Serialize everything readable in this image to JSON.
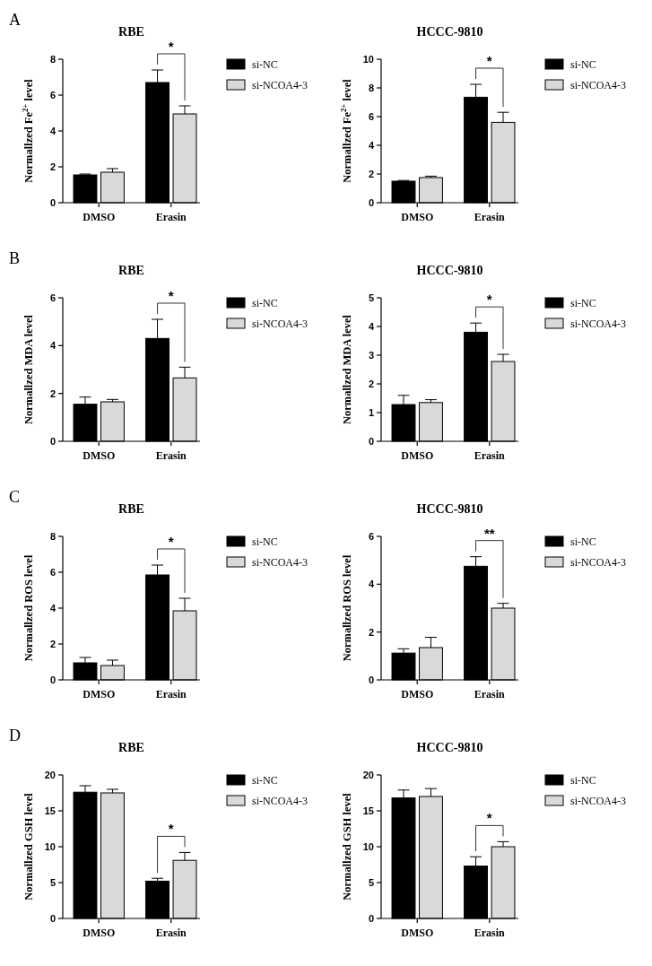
{
  "chart_data": [
    {
      "type": "bar",
      "title": "RBE",
      "ylabel": "Normallzed Fe$^{2+}$ level",
      "categories": [
        "DMSO",
        "Erasin"
      ],
      "ylim": [
        0,
        8
      ],
      "yticks": [
        0,
        2,
        4,
        6,
        8
      ],
      "legend": "right",
      "series": [
        {
          "name": "si-NC",
          "color": "#000000",
          "values": [
            1.55,
            6.7
          ],
          "errors": [
            [
              1.55,
              1.6
            ],
            [
              6.7,
              7.4
            ]
          ]
        },
        {
          "name": "si-NCOA4-3",
          "color": "#d9d9d9",
          "values": [
            1.7,
            4.95
          ],
          "errors": [
            [
              1.7,
              1.9
            ],
            [
              4.95,
              5.4
            ]
          ]
        }
      ],
      "annotations": [
        "A",
        "*"
      ]
    },
    {
      "type": "bar",
      "title": "HCCC-9810",
      "ylabel": "Normallzed Fe$^{2+}$ level",
      "categories": [
        "DMSO",
        "Erasin"
      ],
      "ylim": [
        0,
        10
      ],
      "yticks": [
        0,
        2,
        4,
        6,
        8,
        10
      ],
      "legend": "right",
      "series": [
        {
          "name": "si-NC",
          "color": "#000000",
          "values": [
            1.5,
            7.35
          ],
          "errors": [
            [
              1.5,
              1.55
            ],
            [
              7.35,
              8.25
            ]
          ]
        },
        {
          "name": "si-NCOA4-3",
          "color": "#d9d9d9",
          "values": [
            1.75,
            5.6
          ],
          "errors": [
            [
              1.75,
              1.85
            ],
            [
              5.6,
              6.3
            ]
          ]
        }
      ],
      "annotations": [
        "*"
      ]
    },
    {
      "type": "bar",
      "title": "RBE",
      "ylabel": "Normallzed MDA  level",
      "categories": [
        "DMSO",
        "Erasin"
      ],
      "ylim": [
        0,
        6
      ],
      "yticks": [
        0,
        2,
        4,
        6
      ],
      "legend": "right",
      "series": [
        {
          "name": "si-NC",
          "color": "#000000",
          "values": [
            1.55,
            4.3
          ],
          "errors": [
            [
              1.55,
              1.85
            ],
            [
              4.3,
              5.1
            ]
          ]
        },
        {
          "name": "si-NCOA4-3",
          "color": "#d9d9d9",
          "values": [
            1.65,
            2.65
          ],
          "errors": [
            [
              1.65,
              1.75
            ],
            [
              2.65,
              3.1
            ]
          ]
        }
      ],
      "annotations": [
        "B",
        "*"
      ]
    },
    {
      "type": "bar",
      "title": "HCCC-9810",
      "ylabel": "Normallzed MDA  level",
      "categories": [
        "DMSO",
        "Erasin"
      ],
      "ylim": [
        0,
        5
      ],
      "yticks": [
        0,
        1,
        2,
        3,
        4,
        5
      ],
      "legend": "right",
      "series": [
        {
          "name": "si-NC",
          "color": "#000000",
          "values": [
            1.28,
            3.8
          ],
          "errors": [
            [
              1.28,
              1.6
            ],
            [
              3.8,
              4.12
            ]
          ]
        },
        {
          "name": "si-NCOA4-3",
          "color": "#d9d9d9",
          "values": [
            1.35,
            2.78
          ],
          "errors": [
            [
              1.35,
              1.45
            ],
            [
              2.78,
              3.03
            ]
          ]
        }
      ],
      "annotations": [
        "*"
      ]
    },
    {
      "type": "bar",
      "title": "RBE",
      "ylabel": "Normallzed ROS  level",
      "categories": [
        "DMSO",
        "Erasin"
      ],
      "ylim": [
        0,
        8
      ],
      "yticks": [
        0,
        2,
        4,
        6,
        8
      ],
      "legend": "right",
      "series": [
        {
          "name": "si-NC",
          "color": "#000000",
          "values": [
            0.95,
            5.85
          ],
          "errors": [
            [
              0.95,
              1.25
            ],
            [
              5.85,
              6.4
            ]
          ]
        },
        {
          "name": "si-NCOA4-3",
          "color": "#d9d9d9",
          "values": [
            0.8,
            3.85
          ],
          "errors": [
            [
              0.8,
              1.1
            ],
            [
              3.85,
              4.55
            ]
          ]
        }
      ],
      "annotations": [
        "C",
        "*"
      ]
    },
    {
      "type": "bar",
      "title": "HCCC-9810",
      "ylabel": "Normallzed ROS  level",
      "categories": [
        "DMSO",
        "Erasin"
      ],
      "ylim": [
        0,
        6
      ],
      "yticks": [
        0,
        2,
        4,
        6
      ],
      "legend": "right",
      "series": [
        {
          "name": "si-NC",
          "color": "#000000",
          "values": [
            1.12,
            4.75
          ],
          "errors": [
            [
              1.12,
              1.3
            ],
            [
              4.75,
              5.15
            ]
          ]
        },
        {
          "name": "si-NCOA4-3",
          "color": "#d9d9d9",
          "values": [
            1.35,
            3.0
          ],
          "errors": [
            [
              1.35,
              1.78
            ],
            [
              3.0,
              3.2
            ]
          ]
        }
      ],
      "annotations": [
        "**"
      ]
    },
    {
      "type": "bar",
      "title": "RBE",
      "ylabel": "Normallzed GSH  level",
      "categories": [
        "DMSO",
        "Erasin"
      ],
      "ylim": [
        0,
        20
      ],
      "yticks": [
        0,
        5,
        10,
        15,
        20
      ],
      "legend": "right",
      "series": [
        {
          "name": "si-NC",
          "color": "#000000",
          "values": [
            17.6,
            5.2
          ],
          "errors": [
            [
              17.6,
              18.5
            ],
            [
              5.2,
              5.6
            ]
          ]
        },
        {
          "name": "si-NCOA4-3",
          "color": "#d9d9d9",
          "values": [
            17.5,
            8.1
          ],
          "errors": [
            [
              17.5,
              18.0
            ],
            [
              8.1,
              9.2
            ]
          ]
        }
      ],
      "annotations": [
        "D",
        "*"
      ]
    },
    {
      "type": "bar",
      "title": "HCCC-9810",
      "ylabel": "Normallzed GSH  level",
      "categories": [
        "DMSO",
        "Erasin"
      ],
      "ylim": [
        0,
        20
      ],
      "yticks": [
        0,
        5,
        10,
        15,
        20
      ],
      "legend": "right",
      "series": [
        {
          "name": "si-NC",
          "color": "#000000",
          "values": [
            16.8,
            7.3
          ],
          "errors": [
            [
              16.8,
              17.9
            ],
            [
              7.3,
              8.6
            ]
          ]
        },
        {
          "name": "si-NCOA4-3",
          "color": "#d9d9d9",
          "values": [
            17.0,
            10.0
          ],
          "errors": [
            [
              17.0,
              18.1
            ],
            [
              10.0,
              10.7
            ]
          ]
        }
      ],
      "annotations": [
        "*"
      ]
    }
  ]
}
